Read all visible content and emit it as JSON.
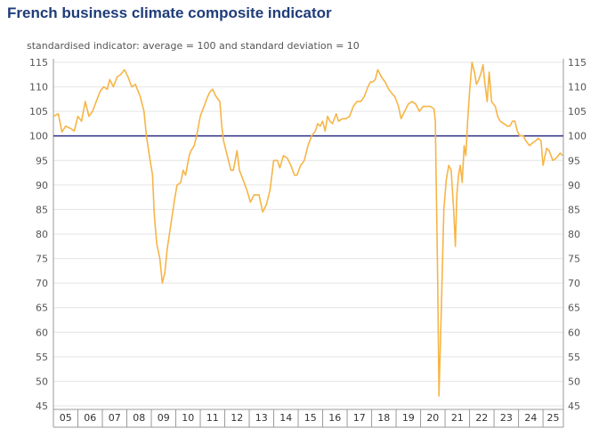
{
  "chart_data": {
    "type": "line",
    "title": "French business climate composite indicator",
    "subtitle": "standardised indicator: average = 100 and standard deviation = 10",
    "ylim": [
      45,
      115
    ],
    "yticks": [
      45,
      50,
      55,
      60,
      65,
      70,
      75,
      80,
      85,
      90,
      95,
      100,
      105,
      110,
      115
    ],
    "x_start": 2005.0,
    "x_end": 2025.833,
    "xticks": [
      "05",
      "06",
      "07",
      "08",
      "09",
      "10",
      "11",
      "12",
      "13",
      "14",
      "15",
      "16",
      "17",
      "18",
      "19",
      "20",
      "21",
      "22",
      "23",
      "24",
      "25"
    ],
    "reference_line": {
      "value": 100,
      "color": "#3c3c8c"
    },
    "series": [
      {
        "color": "#f6b547",
        "points": [
          [
            2005.0,
            104.0
          ],
          [
            2005.2,
            104.5
          ],
          [
            2005.35,
            100.8
          ],
          [
            2005.5,
            102.0
          ],
          [
            2005.7,
            101.5
          ],
          [
            2005.85,
            101.0
          ],
          [
            2006.0,
            104.0
          ],
          [
            2006.15,
            103.0
          ],
          [
            2006.3,
            107.0
          ],
          [
            2006.45,
            104.0
          ],
          [
            2006.6,
            105.0
          ],
          [
            2006.75,
            107.0
          ],
          [
            2006.9,
            109.0
          ],
          [
            2007.05,
            110.0
          ],
          [
            2007.2,
            109.5
          ],
          [
            2007.3,
            111.5
          ],
          [
            2007.45,
            110.0
          ],
          [
            2007.6,
            112.0
          ],
          [
            2007.75,
            112.5
          ],
          [
            2007.9,
            113.5
          ],
          [
            2008.05,
            112.0
          ],
          [
            2008.2,
            110.0
          ],
          [
            2008.35,
            110.5
          ],
          [
            2008.55,
            108.0
          ],
          [
            2008.7,
            105.0
          ],
          [
            2008.8,
            100.0
          ],
          [
            2008.92,
            96.0
          ],
          [
            2009.05,
            92.0
          ],
          [
            2009.12,
            84.0
          ],
          [
            2009.22,
            78.0
          ],
          [
            2009.35,
            75.0
          ],
          [
            2009.45,
            70.0
          ],
          [
            2009.55,
            72.0
          ],
          [
            2009.65,
            77.0
          ],
          [
            2009.8,
            82.0
          ],
          [
            2009.95,
            87.0
          ],
          [
            2010.05,
            90.0
          ],
          [
            2010.2,
            90.5
          ],
          [
            2010.3,
            93.0
          ],
          [
            2010.4,
            92.0
          ],
          [
            2010.55,
            96.0
          ],
          [
            2010.62,
            97.0
          ],
          [
            2010.75,
            98.0
          ],
          [
            2010.85,
            100.0
          ],
          [
            2011.0,
            104.0
          ],
          [
            2011.15,
            106.0
          ],
          [
            2011.3,
            108.0
          ],
          [
            2011.4,
            109.0
          ],
          [
            2011.5,
            109.5
          ],
          [
            2011.65,
            108.0
          ],
          [
            2011.8,
            107.0
          ],
          [
            2011.88,
            102.0
          ],
          [
            2011.95,
            99.0
          ],
          [
            2012.1,
            96.0
          ],
          [
            2012.25,
            93.0
          ],
          [
            2012.35,
            93.0
          ],
          [
            2012.5,
            97.0
          ],
          [
            2012.6,
            93.0
          ],
          [
            2012.75,
            91.0
          ],
          [
            2012.9,
            89.0
          ],
          [
            2013.05,
            86.5
          ],
          [
            2013.2,
            88.0
          ],
          [
            2013.4,
            88.0
          ],
          [
            2013.55,
            84.5
          ],
          [
            2013.7,
            86.0
          ],
          [
            2013.85,
            89.0
          ],
          [
            2014.0,
            95.0
          ],
          [
            2014.15,
            95.0
          ],
          [
            2014.25,
            93.5
          ],
          [
            2014.4,
            96.0
          ],
          [
            2014.55,
            95.5
          ],
          [
            2014.7,
            94.0
          ],
          [
            2014.85,
            92.0
          ],
          [
            2014.95,
            92.0
          ],
          [
            2015.1,
            94.0
          ],
          [
            2015.25,
            95.0
          ],
          [
            2015.4,
            98.0
          ],
          [
            2015.55,
            100.0
          ],
          [
            2015.7,
            101.0
          ],
          [
            2015.8,
            102.5
          ],
          [
            2015.9,
            102.0
          ],
          [
            2016.0,
            103.0
          ],
          [
            2016.1,
            101.0
          ],
          [
            2016.2,
            104.0
          ],
          [
            2016.3,
            103.0
          ],
          [
            2016.4,
            102.5
          ],
          [
            2016.55,
            104.5
          ],
          [
            2016.65,
            103.0
          ],
          [
            2016.8,
            103.5
          ],
          [
            2016.95,
            103.5
          ],
          [
            2017.1,
            104.0
          ],
          [
            2017.25,
            106.0
          ],
          [
            2017.4,
            107.0
          ],
          [
            2017.55,
            107.0
          ],
          [
            2017.7,
            108.0
          ],
          [
            2017.85,
            110.0
          ],
          [
            2017.95,
            111.0
          ],
          [
            2018.05,
            111.0
          ],
          [
            2018.15,
            111.5
          ],
          [
            2018.25,
            113.5
          ],
          [
            2018.4,
            112.0
          ],
          [
            2018.55,
            111.0
          ],
          [
            2018.7,
            109.5
          ],
          [
            2018.85,
            108.5
          ],
          [
            2018.95,
            108.0
          ],
          [
            2019.1,
            106.0
          ],
          [
            2019.2,
            103.5
          ],
          [
            2019.35,
            105.0
          ],
          [
            2019.5,
            106.5
          ],
          [
            2019.65,
            107.0
          ],
          [
            2019.8,
            106.5
          ],
          [
            2019.95,
            105.0
          ],
          [
            2020.1,
            106.0
          ],
          [
            2020.25,
            106.0
          ],
          [
            2020.4,
            106.0
          ],
          [
            2020.55,
            105.5
          ],
          [
            2020.6,
            103.0
          ],
          [
            2020.7,
            70.0
          ],
          [
            2020.75,
            47.0
          ],
          [
            2020.85,
            65.0
          ],
          [
            2020.95,
            85.0
          ],
          [
            2021.05,
            91.0
          ],
          [
            2021.15,
            94.0
          ],
          [
            2021.25,
            93.0
          ],
          [
            2021.35,
            85.0
          ],
          [
            2021.42,
            77.5
          ],
          [
            2021.48,
            88.0
          ],
          [
            2021.55,
            92.0
          ],
          [
            2021.62,
            94.0
          ],
          [
            2021.7,
            90.5
          ],
          [
            2021.78,
            98.0
          ],
          [
            2021.85,
            96.0
          ],
          [
            2021.92,
            103.0
          ],
          [
            2022.0,
            109.0
          ],
          [
            2022.1,
            115.0
          ],
          [
            2022.2,
            113.0
          ],
          [
            2022.28,
            110.5
          ],
          [
            2022.38,
            111.5
          ],
          [
            2022.48,
            113.0
          ],
          [
            2022.55,
            114.5
          ],
          [
            2022.62,
            111.0
          ],
          [
            2022.72,
            107.0
          ],
          [
            2022.8,
            113.0
          ],
          [
            2022.9,
            107.0
          ],
          [
            2023.05,
            106.0
          ],
          [
            2023.15,
            104.0
          ],
          [
            2023.25,
            103.0
          ],
          [
            2023.4,
            102.5
          ],
          [
            2023.55,
            102.0
          ],
          [
            2023.65,
            102.0
          ],
          [
            2023.75,
            103.0
          ],
          [
            2023.85,
            103.0
          ],
          [
            2023.95,
            101.0
          ],
          [
            2024.05,
            100.0
          ],
          [
            2024.2,
            100.0
          ],
          [
            2024.3,
            99.0
          ],
          [
            2024.45,
            98.0
          ],
          [
            2024.55,
            98.5
          ],
          [
            2024.7,
            99.0
          ],
          [
            2024.8,
            99.5
          ],
          [
            2024.92,
            99.0
          ],
          [
            2025.0,
            94.0
          ],
          [
            2025.15,
            97.5
          ],
          [
            2025.25,
            97.0
          ],
          [
            2025.4,
            95.0
          ],
          [
            2025.55,
            95.5
          ],
          [
            2025.7,
            96.5
          ],
          [
            2025.8,
            96.0
          ]
        ]
      }
    ]
  },
  "colors": {
    "title": "#1f3c7a",
    "line": "#f6b547",
    "reference": "#3c3c8c",
    "grid": "#e4e4e4",
    "axis": "#9a9a9a"
  }
}
